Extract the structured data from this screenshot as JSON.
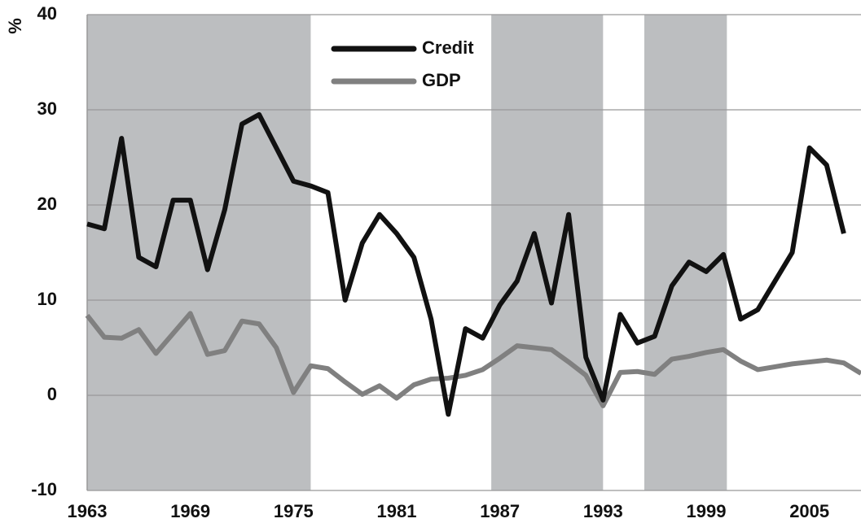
{
  "chart_data": {
    "type": "line",
    "y_label": "%",
    "x": [
      1963,
      1964,
      1965,
      1966,
      1967,
      1968,
      1969,
      1970,
      1971,
      1972,
      1973,
      1974,
      1975,
      1976,
      1977,
      1978,
      1979,
      1980,
      1981,
      1982,
      1983,
      1984,
      1985,
      1986,
      1987,
      1988,
      1989,
      1990,
      1991,
      1992,
      1993,
      1994,
      1995,
      1996,
      1997,
      1998,
      1999,
      2000,
      2001,
      2002,
      2003,
      2004,
      2005,
      2006,
      2007,
      2008
    ],
    "series": [
      {
        "name": "Credit",
        "color": "#111111",
        "values": [
          18,
          17.5,
          27,
          14.5,
          13.5,
          20.5,
          20.5,
          13.2,
          19.5,
          28.5,
          29.5,
          26,
          22.5,
          22,
          21.3,
          10,
          16,
          19,
          17,
          14.5,
          8,
          -2,
          7,
          6,
          9.5,
          12,
          17,
          9.7,
          19,
          4,
          -0.5,
          8.5,
          5.5,
          6.2,
          11.5,
          14,
          13,
          14.8,
          8,
          9,
          12,
          15,
          26,
          24.2,
          17,
          null
        ]
      },
      {
        "name": "GDP",
        "color": "#808080",
        "values": [
          8.4,
          6.1,
          6,
          6.9,
          4.4,
          6.5,
          8.6,
          4.3,
          4.7,
          7.8,
          7.5,
          5,
          0.3,
          3.1,
          2.8,
          1.4,
          0.1,
          1,
          -0.3,
          1.1,
          1.7,
          1.8,
          2.1,
          2.7,
          3.9,
          5.2,
          5,
          4.8,
          3.5,
          2.1,
          -1.1,
          2.4,
          2.5,
          2.2,
          3.8,
          4.1,
          4.5,
          4.8,
          3.6,
          2.7,
          3,
          3.3,
          3.5,
          3.7,
          3.4,
          2.3
        ]
      }
    ],
    "shaded_periods": [
      [
        1963,
        1976
      ],
      [
        1986.5,
        1993
      ],
      [
        1995.4,
        2000.2
      ]
    ],
    "shade_color": "#bcbec0",
    "xlim": [
      1963,
      2008
    ],
    "xticks": [
      1963,
      1969,
      1975,
      1981,
      1987,
      1993,
      1999,
      2005
    ],
    "ylim": [
      -10,
      40
    ],
    "yticks": [
      -10,
      0,
      10,
      20,
      30,
      40
    ],
    "grid": true
  }
}
